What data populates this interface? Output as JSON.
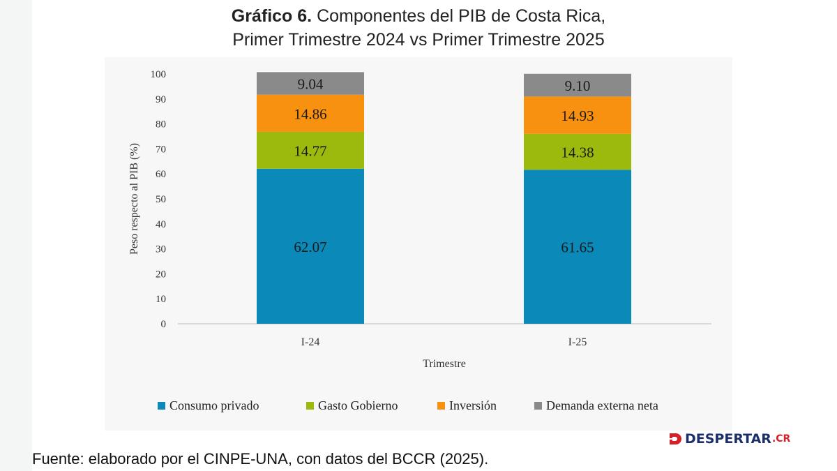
{
  "title": {
    "bold": "Gráfico 6.",
    "line1_rest": " Componentes del PIB de Costa Rica,",
    "line2": "Primer Trimestre 2024 vs Primer Trimestre 2025"
  },
  "source": "Fuente: elaborado por el CINPE-UNA, con datos del BCCR (2025).",
  "logo": {
    "text": "DESPERTAR",
    "suffix": ".CR"
  },
  "chart_data": {
    "type": "bar",
    "stacked": true,
    "categories": [
      "I-24",
      "I-25"
    ],
    "series": [
      {
        "name": "Consumo privado",
        "values": [
          62.07,
          61.65
        ],
        "color": "#0b8ab9"
      },
      {
        "name": "Gasto Gobierno",
        "values": [
          14.77,
          14.38
        ],
        "color": "#9cba0e"
      },
      {
        "name": "Inversión",
        "values": [
          14.86,
          14.93
        ],
        "color": "#f7910f"
      },
      {
        "name": "Demanda externa neta",
        "values": [
          9.04,
          9.1
        ],
        "color": "#8a8a8a"
      }
    ],
    "xlabel": "Trimestre",
    "ylabel": "Peso respecto al PIB (%)",
    "ylim": [
      0,
      100
    ],
    "yticks": [
      0,
      10,
      20,
      30,
      40,
      50,
      60,
      70,
      80,
      90,
      100
    ],
    "grid": false,
    "legend": "bottom"
  }
}
